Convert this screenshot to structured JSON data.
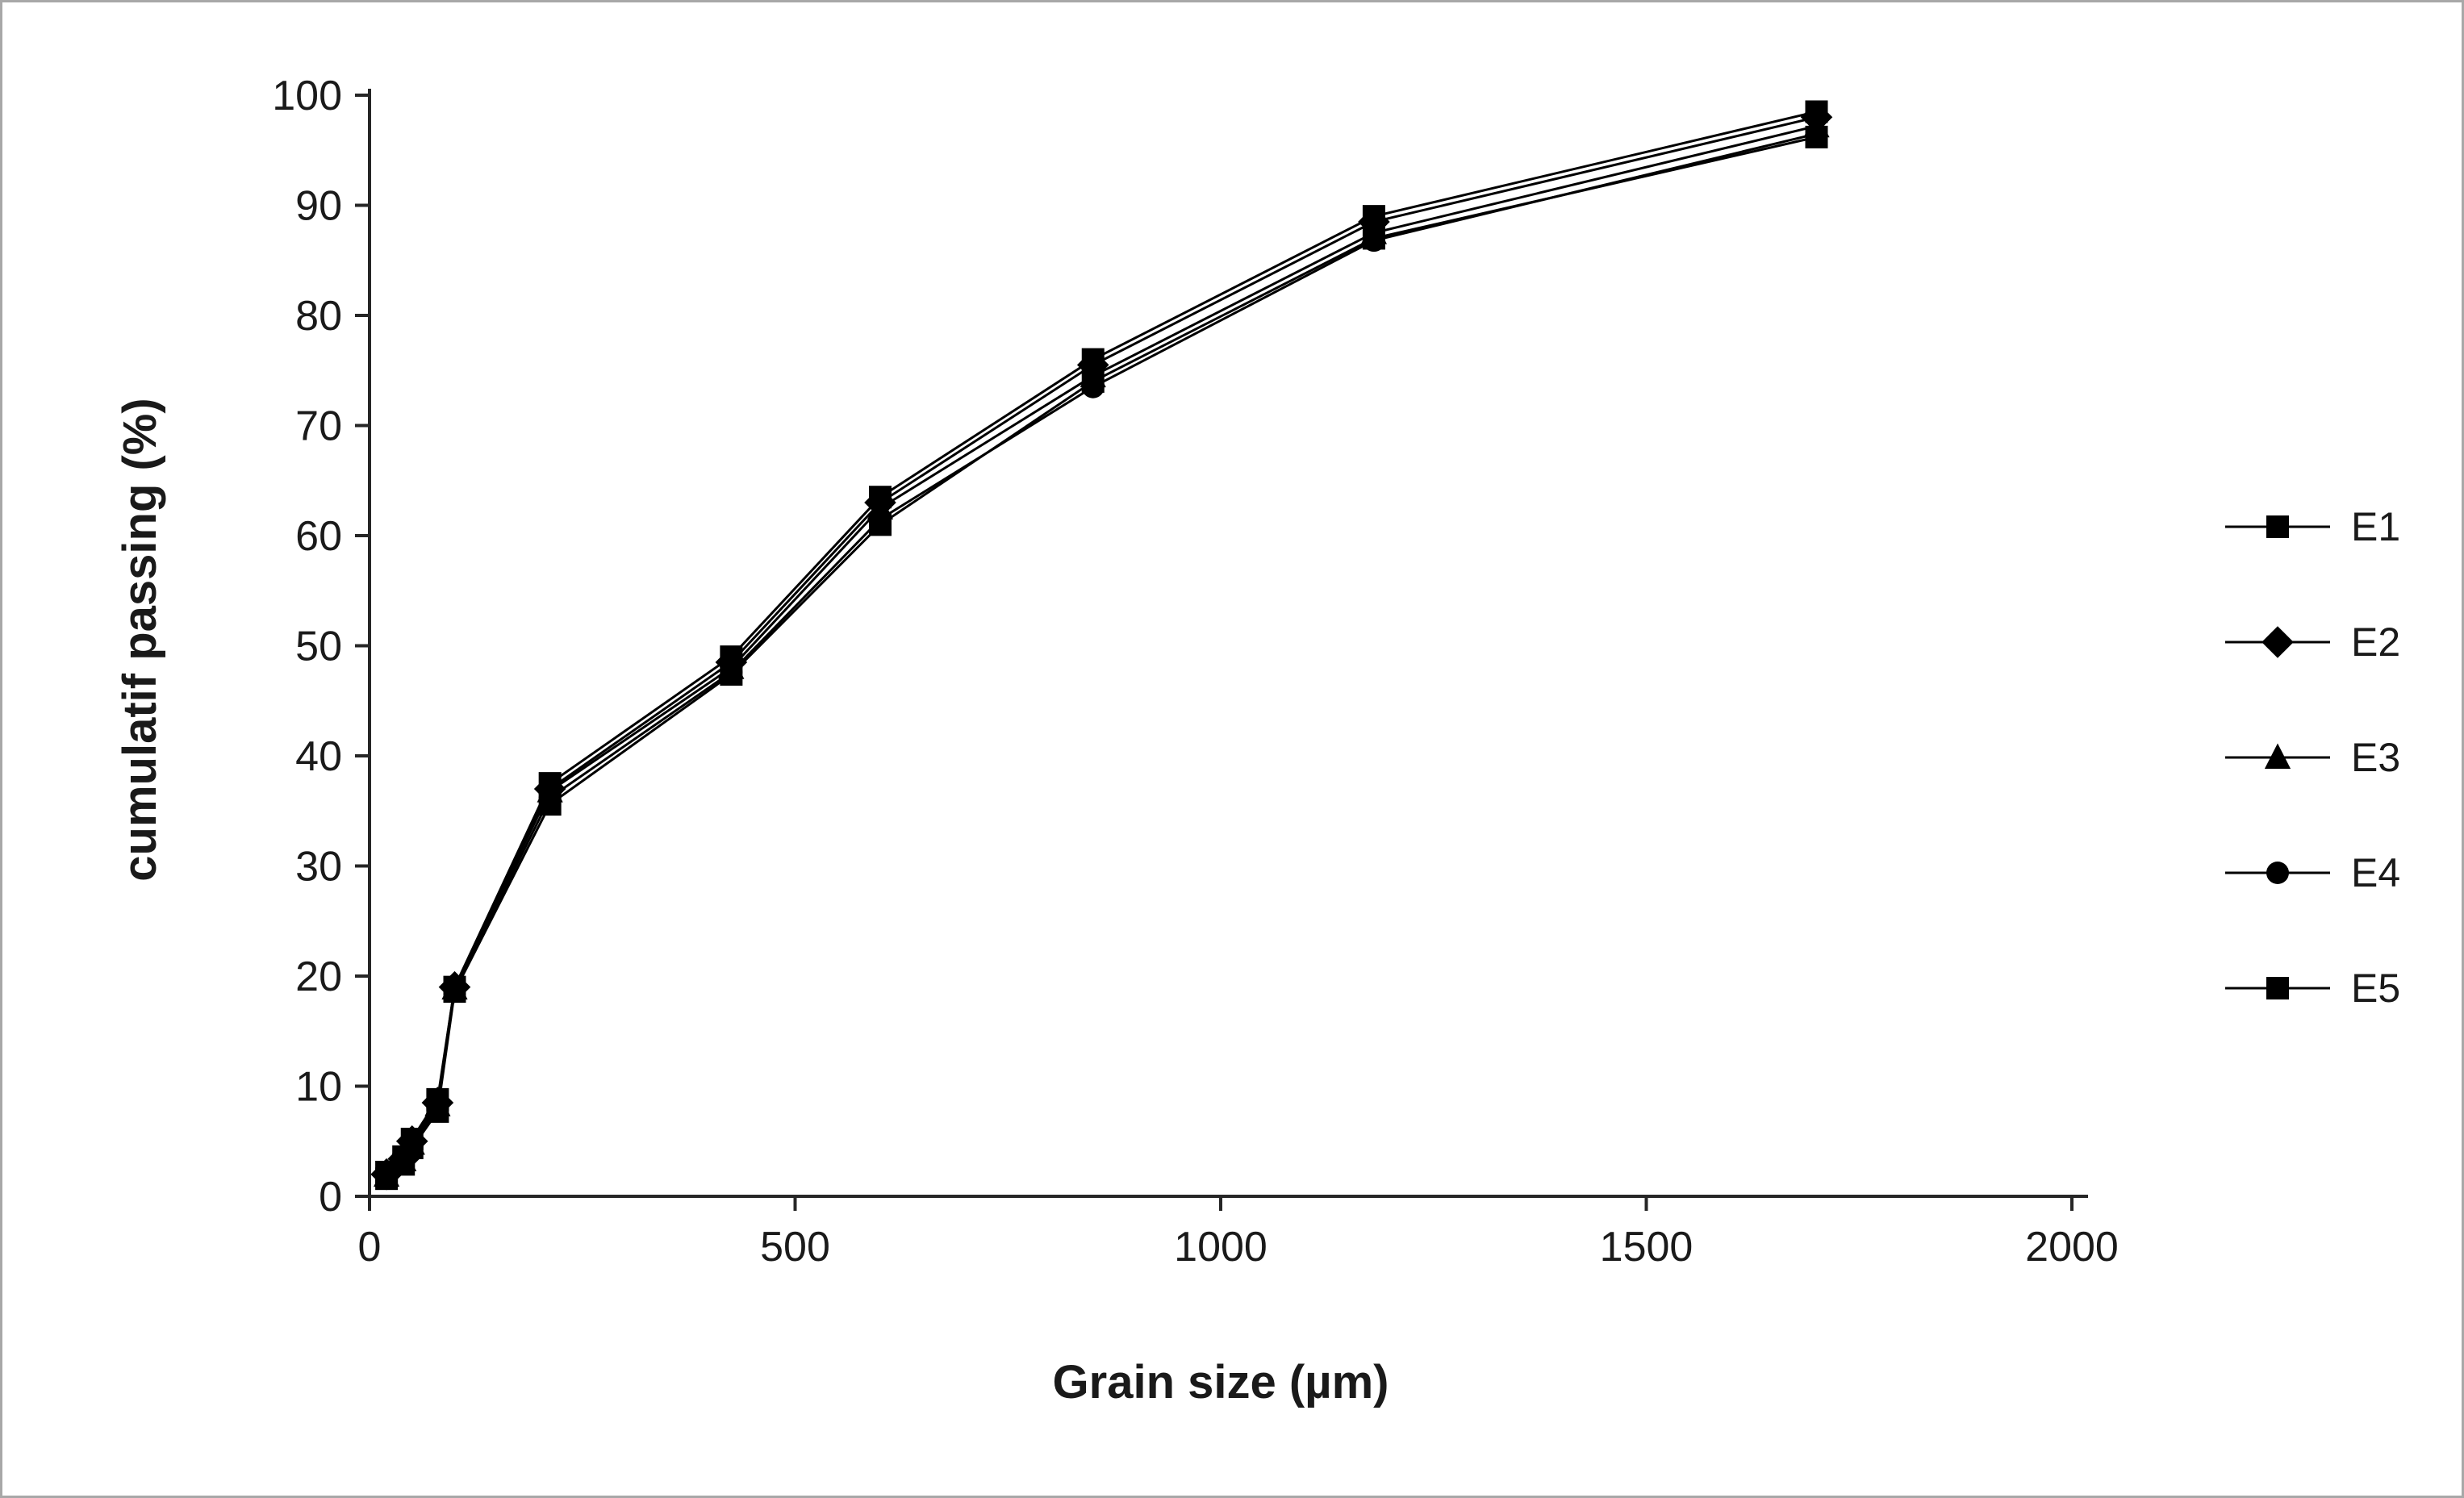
{
  "figure": {
    "background": "#ffffff",
    "border_color": "#a8a8a8"
  },
  "chart_data": {
    "type": "line",
    "title": "",
    "xlabel": "Grain size (µm)",
    "ylabel": "cumulatif passing (%)",
    "xlim": [
      0,
      2000
    ],
    "ylim": [
      0,
      100
    ],
    "x_ticks": [
      0,
      500,
      1000,
      1500,
      2000
    ],
    "y_ticks": [
      0,
      10,
      20,
      30,
      40,
      50,
      60,
      70,
      80,
      90,
      100
    ],
    "grid": false,
    "legend_position": "right",
    "axis_color": "#262626",
    "series_color": "#000000",
    "x": [
      20,
      40,
      50,
      80,
      100,
      212,
      425,
      600,
      850,
      1180,
      1700
    ],
    "series": [
      {
        "name": "E1",
        "marker": "square",
        "values": [
          2.2,
          3.6,
          5.2,
          8.8,
          19.0,
          37.5,
          49.0,
          63.5,
          76.0,
          89.0,
          98.5
        ]
      },
      {
        "name": "E2",
        "marker": "diamond",
        "values": [
          2.0,
          3.4,
          5.0,
          8.5,
          19.0,
          37.0,
          48.5,
          63.0,
          75.5,
          88.5,
          98.0
        ]
      },
      {
        "name": "E3",
        "marker": "triangle",
        "values": [
          1.9,
          3.3,
          4.8,
          8.3,
          18.9,
          36.8,
          48.0,
          62.5,
          74.5,
          87.5,
          97.2
        ]
      },
      {
        "name": "E4",
        "marker": "circle",
        "values": [
          1.8,
          3.1,
          4.6,
          8.0,
          18.8,
          36.2,
          47.6,
          61.5,
          73.5,
          86.8,
          96.5
        ]
      },
      {
        "name": "E5",
        "marker": "square",
        "values": [
          1.6,
          2.9,
          4.4,
          7.7,
          18.6,
          35.6,
          47.4,
          61.0,
          74.0,
          87.0,
          96.2
        ]
      }
    ]
  }
}
